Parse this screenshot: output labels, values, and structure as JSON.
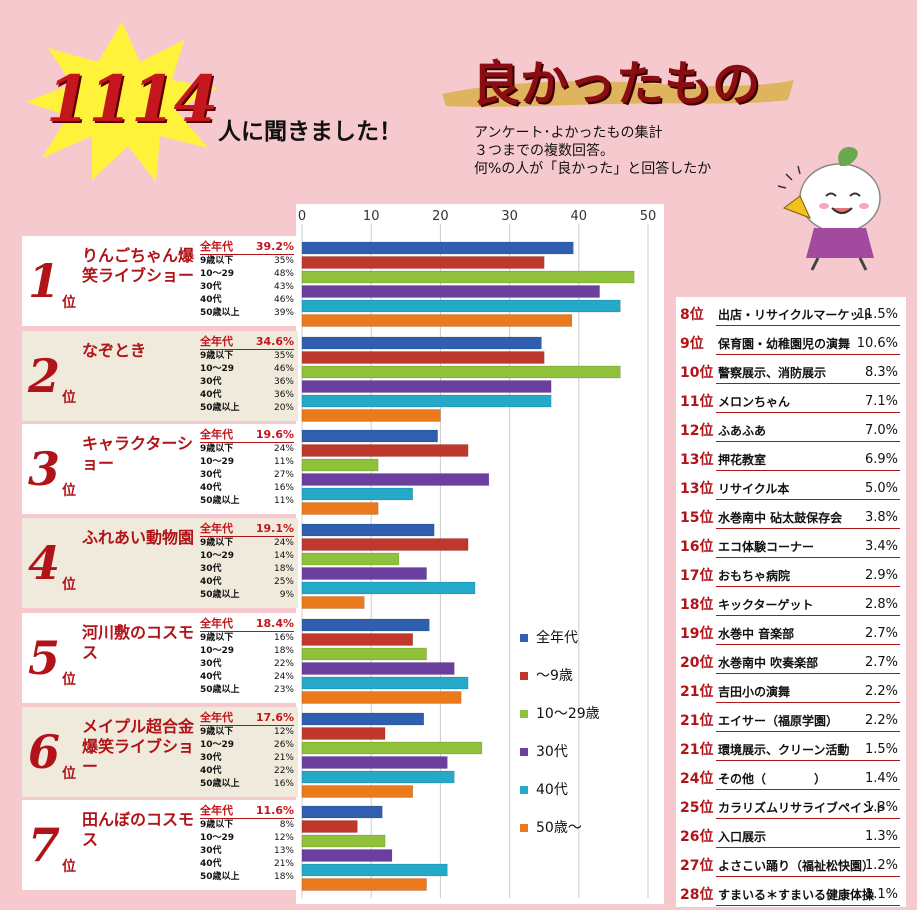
{
  "header": {
    "count": "1114",
    "count_suffix": "人に聞きました！",
    "title": "良かったもの",
    "subtitle": [
      "アンケート･よかったもの集計",
      "３つまでの複数回答。",
      "何%の人が「良かった」と回答したか"
    ]
  },
  "colors": {
    "series": [
      "#2f5fae",
      "#c0382b",
      "#8fc13a",
      "#6b3fa0",
      "#25a9c9",
      "#ea7a1c"
    ]
  },
  "chart_data": {
    "type": "bar",
    "orientation": "horizontal",
    "xlim": [
      0,
      50
    ],
    "xticks": [
      "0",
      "10",
      "20",
      "30",
      "40",
      "50"
    ],
    "grid": true,
    "legend_position": "right",
    "series_names": [
      "全年代",
      "～9歳",
      "10～29歳",
      "30代",
      "40代",
      "50歳～"
    ],
    "groups": [
      {
        "rank": "1",
        "rank_suffix": "位",
        "name": "りんごちゃん爆笑ライブショー",
        "values": [
          39.2,
          35,
          48,
          43,
          46,
          39
        ],
        "labels": [
          "39.2%",
          "35%",
          "48%",
          "43%",
          "46%",
          "39%"
        ]
      },
      {
        "rank": "2",
        "rank_suffix": "位",
        "name": "なぞとき",
        "values": [
          34.6,
          35,
          46,
          36,
          36,
          20
        ],
        "labels": [
          "34.6%",
          "35%",
          "46%",
          "36%",
          "36%",
          "20%"
        ]
      },
      {
        "rank": "3",
        "rank_suffix": "位",
        "name": "キャラクターショー",
        "values": [
          19.6,
          24,
          11,
          27,
          16,
          11
        ],
        "labels": [
          "19.6%",
          "24%",
          "11%",
          "27%",
          "16%",
          "11%"
        ]
      },
      {
        "rank": "4",
        "rank_suffix": "位",
        "name": "ふれあい動物園",
        "values": [
          19.1,
          24,
          14,
          18,
          25,
          9
        ],
        "labels": [
          "19.1%",
          "24%",
          "14%",
          "18%",
          "25%",
          "9%"
        ]
      },
      {
        "rank": "5",
        "rank_suffix": "位",
        "name": "河川敷のコスモス",
        "values": [
          18.4,
          16,
          18,
          22,
          24,
          23
        ],
        "labels": [
          "18.4%",
          "16%",
          "18%",
          "22%",
          "24%",
          "23%"
        ]
      },
      {
        "rank": "6",
        "rank_suffix": "位",
        "name": "メイプル超合金爆笑ライブショー",
        "values": [
          17.6,
          12,
          26,
          21,
          22,
          16
        ],
        "labels": [
          "17.6%",
          "12%",
          "26%",
          "21%",
          "22%",
          "16%"
        ]
      },
      {
        "rank": "7",
        "rank_suffix": "位",
        "name": "田んぼのコスモス",
        "values": [
          11.6,
          8,
          12,
          13,
          21,
          18
        ],
        "labels": [
          "11.6%",
          "8%",
          "12%",
          "13%",
          "21%",
          "18%"
        ]
      }
    ],
    "age_labels": [
      "全年代",
      "9歳以下",
      "10～29",
      "30代",
      "40代",
      "50歳以上"
    ]
  },
  "others": [
    {
      "rank": "8位",
      "name": "出店・リサイクルマーケット",
      "pct": "11.5%"
    },
    {
      "rank": "9位",
      "name": "保育園・幼稚園児の演舞",
      "pct": "10.6%"
    },
    {
      "rank": "10位",
      "name": "警察展示、消防展示",
      "pct": "8.3%"
    },
    {
      "rank": "11位",
      "name": "メロンちゃん",
      "pct": "7.1%"
    },
    {
      "rank": "12位",
      "name": "ふあふあ",
      "pct": "7.0%"
    },
    {
      "rank": "13位",
      "name": "押花教室",
      "pct": "6.9%"
    },
    {
      "rank": "13位",
      "name": "リサイクル本",
      "pct": "5.0%"
    },
    {
      "rank": "15位",
      "name": "水巻南中 砧太鼓保存会",
      "pct": "3.8%"
    },
    {
      "rank": "16位",
      "name": "エコ体験コーナー",
      "pct": "3.4%"
    },
    {
      "rank": "17位",
      "name": "おもちゃ病院",
      "pct": "2.9%"
    },
    {
      "rank": "18位",
      "name": "キックターゲット",
      "pct": "2.8%"
    },
    {
      "rank": "19位",
      "name": "水巻中 音楽部",
      "pct": "2.7%"
    },
    {
      "rank": "20位",
      "name": "水巻南中 吹奏楽部",
      "pct": "2.7%"
    },
    {
      "rank": "21位",
      "name": "吉田小の演舞",
      "pct": "2.2%"
    },
    {
      "rank": "21位",
      "name": "エイサー（福原学園）",
      "pct": "2.2%"
    },
    {
      "rank": "21位",
      "name": "環境展示、クリーン活動",
      "pct": "1.5%"
    },
    {
      "rank": "24位",
      "name": "その他（　　　　）",
      "pct": "1.4%"
    },
    {
      "rank": "25位",
      "name": "カラリズムリサライブペイント",
      "pct": "1.3%"
    },
    {
      "rank": "26位",
      "name": "入口展示",
      "pct": "1.3%"
    },
    {
      "rank": "27位",
      "name": "よさこい踊り（福祉松快園）",
      "pct": "1.2%"
    },
    {
      "rank": "28位",
      "name": "すまいる＊すまいる健康体操",
      "pct": "1.1%"
    }
  ]
}
